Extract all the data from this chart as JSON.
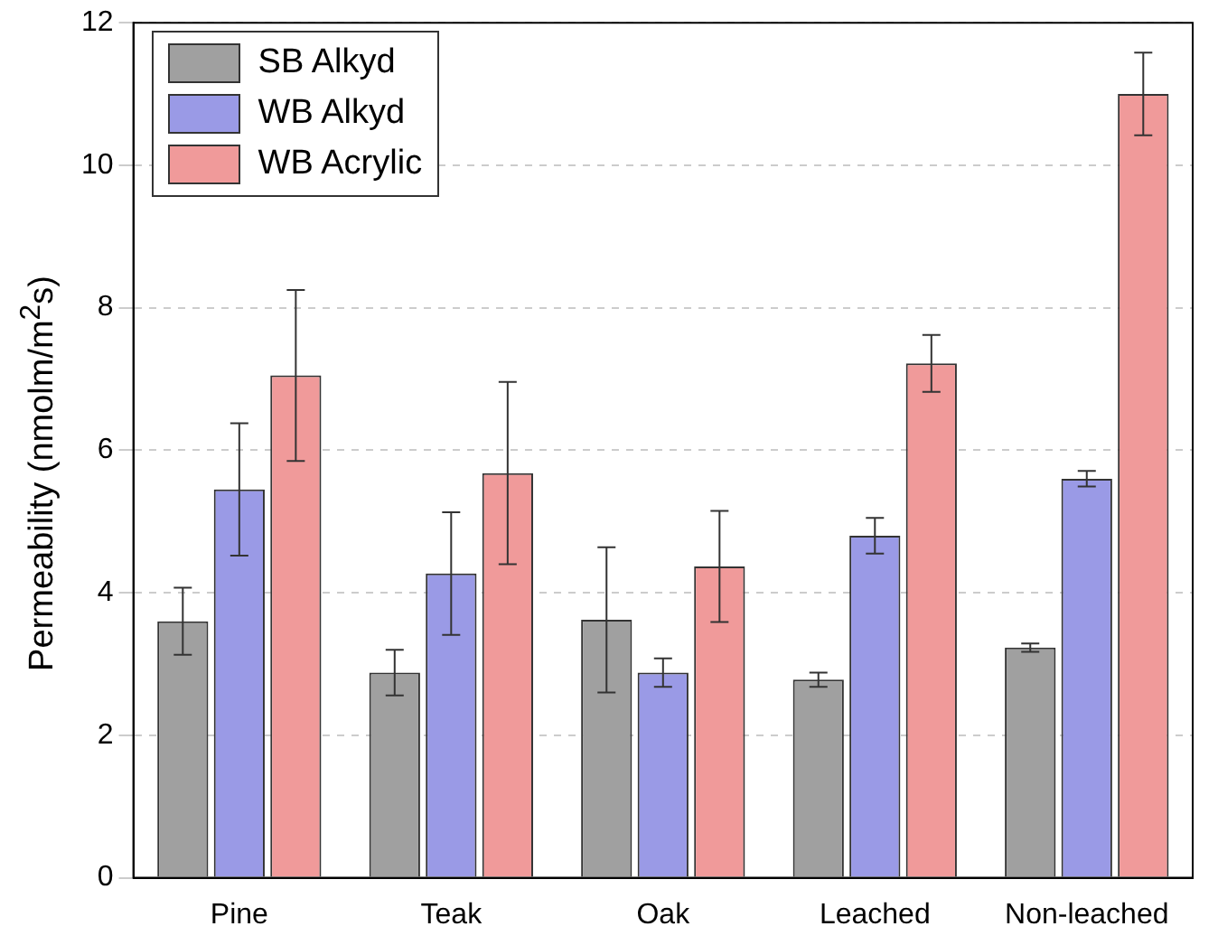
{
  "chart_data": {
    "type": "bar",
    "ylabel": "Permeability (nmolm/m$^{2}$s)",
    "categories": [
      "Pine",
      "Teak",
      "Oak",
      "Leached",
      "Non-leached"
    ],
    "series": [
      {
        "name": "SB Alkyd",
        "color": "#a0a0a0",
        "values": [
          3.6,
          2.88,
          3.62,
          2.78,
          3.23
        ],
        "errors": [
          0.47,
          0.32,
          1.02,
          0.1,
          0.06
        ]
      },
      {
        "name": "WB Alkyd",
        "color": "#9a9ae6",
        "values": [
          5.45,
          4.27,
          2.88,
          4.8,
          5.6
        ],
        "errors": [
          0.93,
          0.86,
          0.2,
          0.25,
          0.11
        ]
      },
      {
        "name": "WB Acrylic",
        "color": "#f09a9a",
        "values": [
          7.05,
          5.68,
          4.37,
          7.22,
          11.0
        ],
        "errors": [
          1.2,
          1.28,
          0.78,
          0.4,
          0.58
        ]
      }
    ],
    "ylim": [
      0,
      12
    ],
    "yticks": [
      0,
      2,
      4,
      6,
      8,
      10,
      12
    ],
    "grid": "y",
    "legend": "top left"
  }
}
